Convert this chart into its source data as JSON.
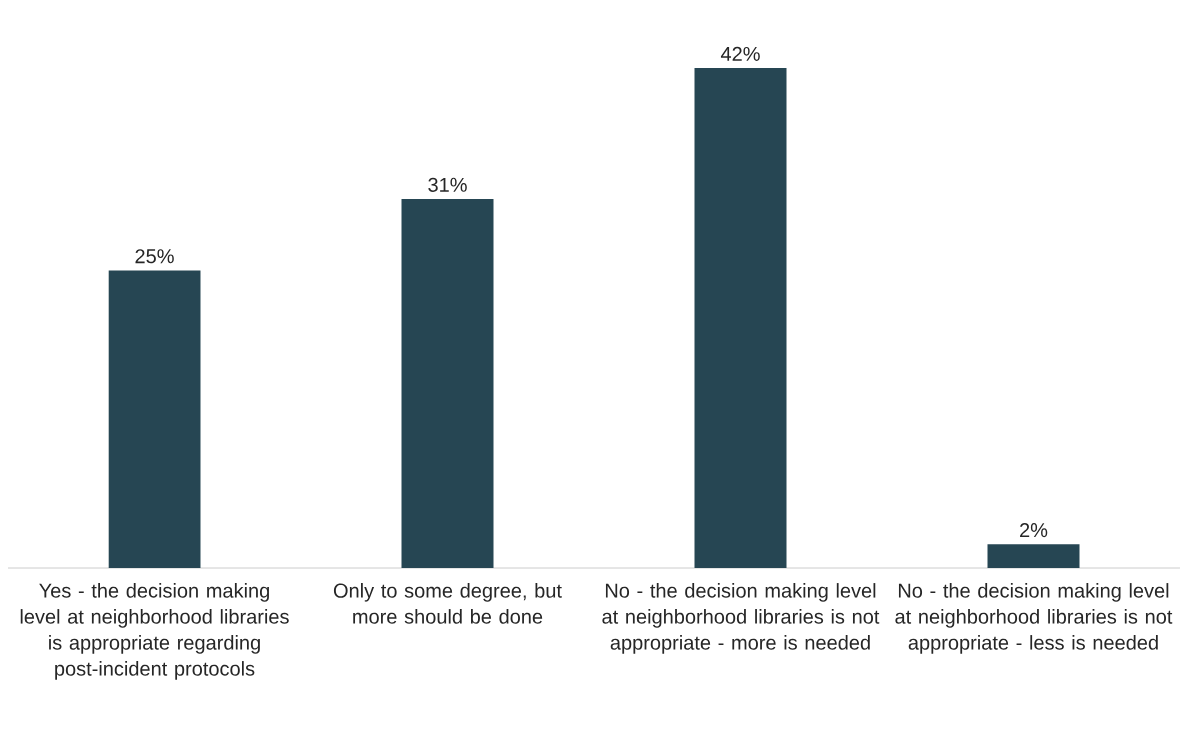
{
  "chart_data": {
    "type": "bar",
    "categories": [
      "Yes - the decision making level at neighborhood libraries is appropriate regarding post-incident protocols",
      "Only to some degree, but more should be done",
      "No - the decision making level at neighborhood libraries is not appropriate - more is needed",
      "No - the decision making level at neighborhood libraries is not appropriate - less is needed"
    ],
    "values": [
      25,
      31,
      42,
      2
    ],
    "value_labels": [
      "25%",
      "31%",
      "42%",
      "2%"
    ],
    "color": "#264653"
  }
}
